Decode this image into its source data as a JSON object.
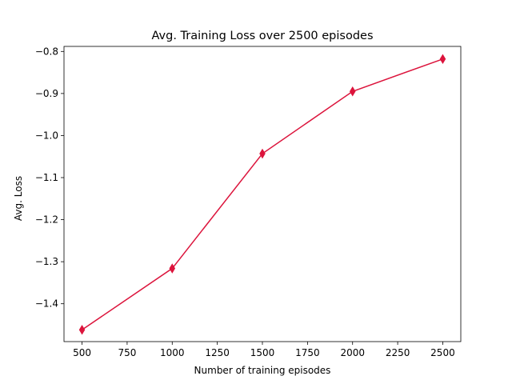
{
  "chart_data": {
    "type": "line",
    "title": "Avg. Training Loss over 2500 episodes",
    "xlabel": "Number of training episodes",
    "ylabel": "Avg. Loss",
    "x": [
      500,
      1000,
      1500,
      2000,
      2500
    ],
    "series": [
      {
        "values": [
          -1.462,
          -1.316,
          -1.043,
          -0.895,
          -0.818
        ],
        "color": "#dc143c",
        "marker": "thin-diamond"
      }
    ],
    "xlim": [
      400,
      2600
    ],
    "ylim": [
      -1.49,
      -0.788
    ],
    "xticks": [
      500,
      750,
      1000,
      1250,
      1500,
      1750,
      2000,
      2250,
      2500
    ],
    "xtick_labels": [
      "500",
      "750",
      "1000",
      "1250",
      "1500",
      "1750",
      "2000",
      "2250",
      "2500"
    ],
    "yticks": [
      -1.4,
      -1.3,
      -1.2,
      -1.1,
      -1.0,
      -0.9,
      -0.8
    ],
    "ytick_labels": [
      "−1.4",
      "−1.3",
      "−1.2",
      "−1.1",
      "−1.0",
      "−0.9",
      "−0.8"
    ],
    "grid": false,
    "legend": false
  }
}
